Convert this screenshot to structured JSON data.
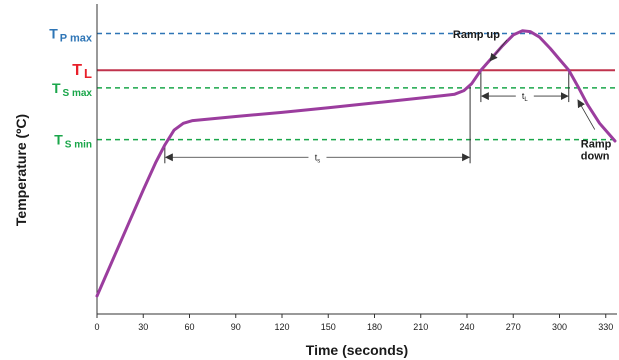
{
  "chart_data": {
    "type": "line",
    "title": "",
    "xlabel": "Time (seconds)",
    "ylabel": "Temperature (ºC)",
    "xlim": [
      0,
      336
    ],
    "ylim": [
      0,
      1
    ],
    "x_ticks": [
      "0",
      "30",
      "60",
      "90",
      "120",
      "150",
      "180",
      "210",
      "240",
      "270",
      "300",
      "330"
    ],
    "grid": false,
    "reference_lines": [
      {
        "id": "tp",
        "main": "T",
        "sub": "P max",
        "y": 0.965,
        "style": "dashed",
        "color": "#2e75b6",
        "main_size": 14,
        "sub_size": 11
      },
      {
        "id": "tl",
        "main": "T",
        "sub": "L",
        "y": 0.83,
        "style": "solid",
        "color": "#c0334d",
        "label_color": "#e8202a",
        "main_size": 16,
        "sub_size": 13
      },
      {
        "id": "tsmax",
        "main": "T",
        "sub": "S max",
        "y": 0.765,
        "style": "dashed",
        "color": "#1aa64a",
        "main_size": 14,
        "sub_size": 10
      },
      {
        "id": "tsmin",
        "main": "T",
        "sub": "S min",
        "y": 0.575,
        "style": "dashed",
        "color": "#1aa64a",
        "main_size": 14,
        "sub_size": 10
      }
    ],
    "series": [
      {
        "color": "#9b3d9e",
        "points": [
          [
            0,
            0.0
          ],
          [
            10,
            0.13
          ],
          [
            20,
            0.26
          ],
          [
            30,
            0.39
          ],
          [
            38,
            0.49
          ],
          [
            44,
            0.555
          ],
          [
            50,
            0.61
          ],
          [
            56,
            0.635
          ],
          [
            62,
            0.645
          ],
          [
            90,
            0.66
          ],
          [
            120,
            0.675
          ],
          [
            150,
            0.692
          ],
          [
            180,
            0.71
          ],
          [
            210,
            0.728
          ],
          [
            225,
            0.737
          ],
          [
            232,
            0.742
          ],
          [
            238,
            0.755
          ],
          [
            243,
            0.78
          ],
          [
            249,
            0.83
          ],
          [
            256,
            0.875
          ],
          [
            263,
            0.92
          ],
          [
            270,
            0.96
          ],
          [
            276,
            0.975
          ],
          [
            281,
            0.972
          ],
          [
            287,
            0.952
          ],
          [
            294,
            0.91
          ],
          [
            300,
            0.87
          ],
          [
            306,
            0.83
          ],
          [
            312,
            0.77
          ],
          [
            318,
            0.705
          ],
          [
            326,
            0.635
          ],
          [
            336,
            0.57
          ]
        ]
      }
    ],
    "spans": [
      {
        "id": "ts",
        "main": "t",
        "sub": "s",
        "x0": 44,
        "x1": 242,
        "y": 0.51
      },
      {
        "id": "tl",
        "main": "t",
        "sub": "L",
        "x0": 249,
        "x1": 306,
        "y": 0.735
      }
    ],
    "annotations": [
      {
        "lines": [
          "Ramp up"
        ],
        "x": 262,
        "y": 0.905,
        "arrow_to": [
          255,
          0.865
        ]
      },
      {
        "lines": [
          "Ramp",
          "down"
        ],
        "x": 319,
        "y": 0.575,
        "arrow_to": [
          312,
          0.72
        ]
      }
    ]
  }
}
